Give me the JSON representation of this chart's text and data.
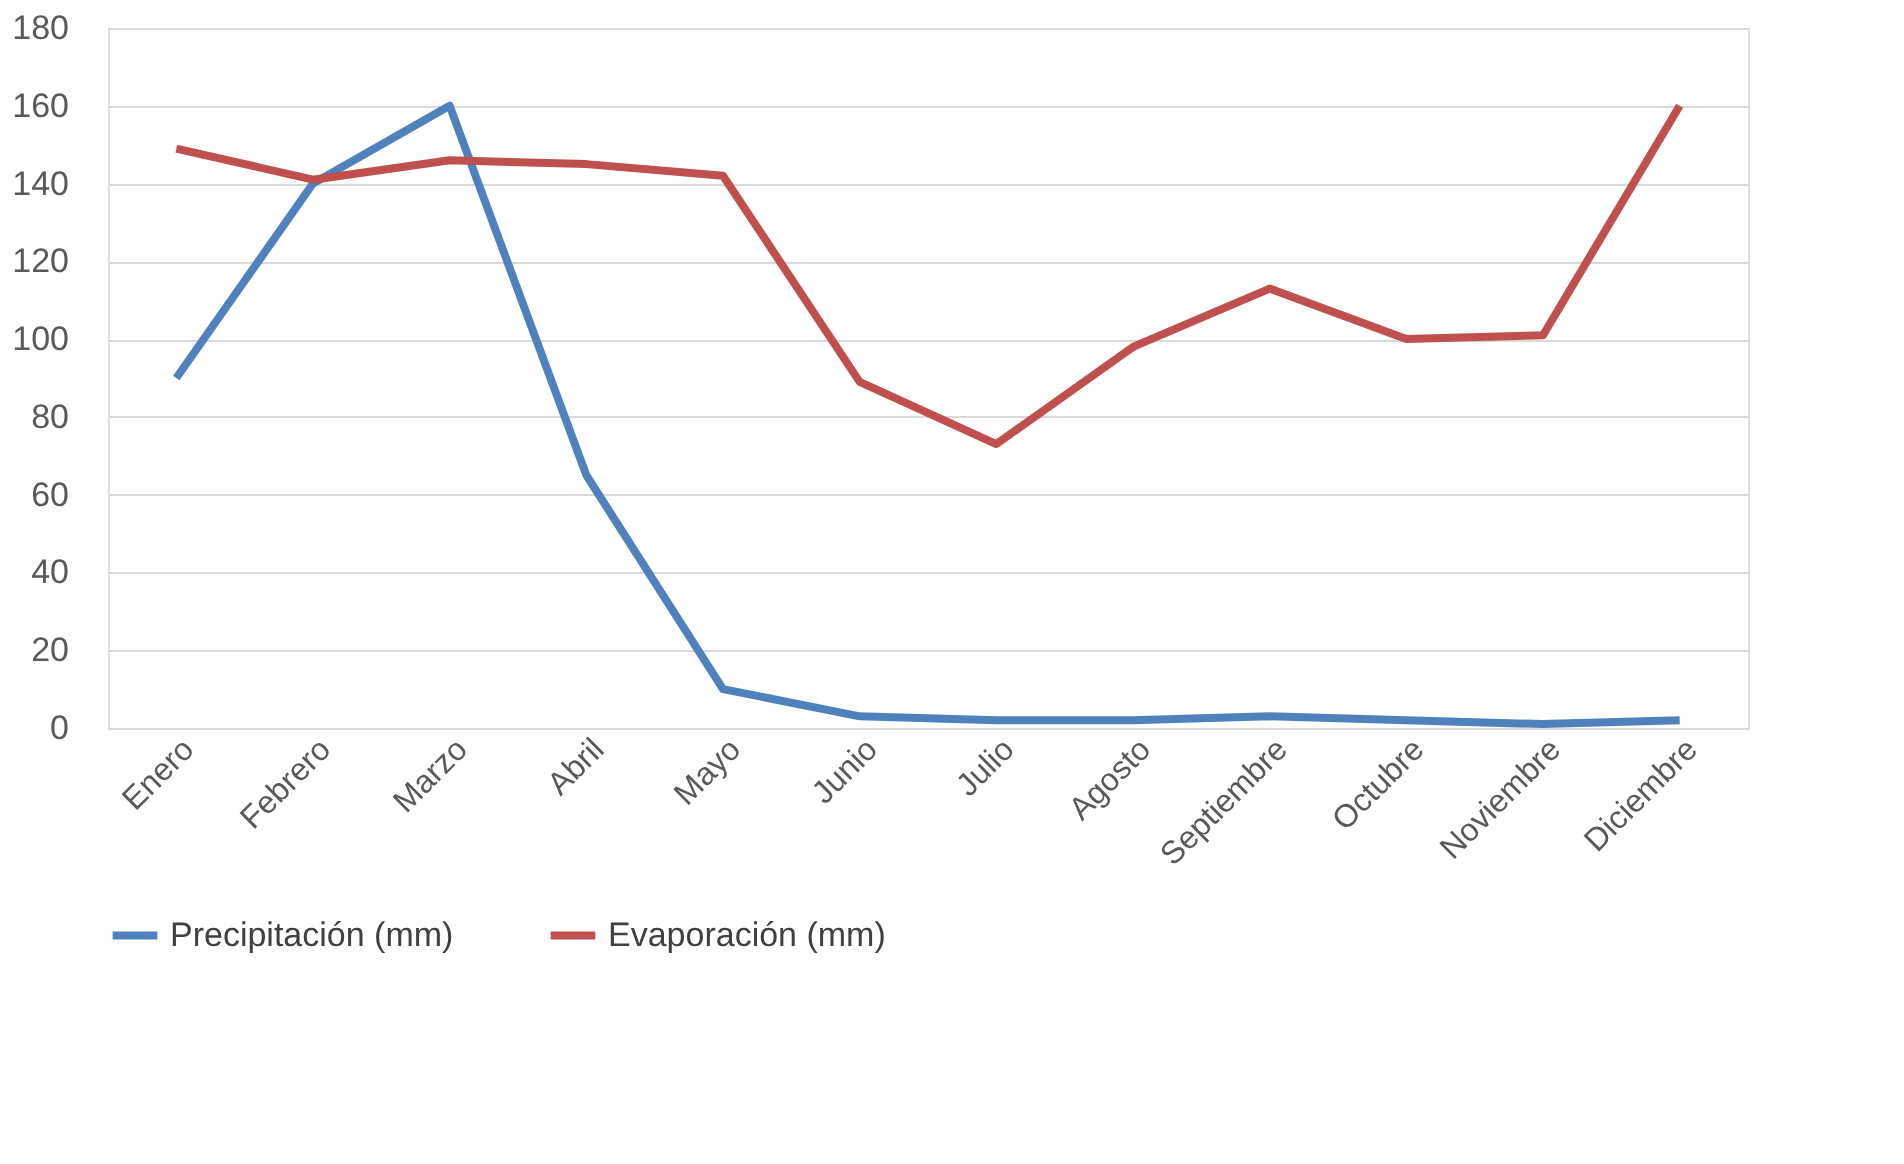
{
  "chart_data": {
    "type": "line",
    "categories": [
      "Enero",
      "Febrero",
      "Marzo",
      "Abril",
      "Mayo",
      "Junio",
      "Julio",
      "Agosto",
      "Septiembre",
      "Octubre",
      "Noviembre",
      "Diciembre"
    ],
    "series": [
      {
        "name": "Precipitación (mm)",
        "color": "#4f81bd",
        "values": [
          90,
          140,
          160,
          65,
          10,
          3,
          2,
          2,
          3,
          2,
          1,
          2
        ]
      },
      {
        "name": "Evaporación (mm)",
        "color": "#c0504d",
        "values": [
          149,
          141,
          146,
          145,
          142,
          89,
          73,
          98,
          113,
          100,
          101,
          160
        ]
      }
    ],
    "ylim": [
      0,
      180
    ],
    "yticks": [
      0,
      20,
      40,
      60,
      80,
      100,
      120,
      140,
      160,
      180
    ],
    "grid": "y",
    "legend": "bottom",
    "marker": "none",
    "line_style": "solid"
  }
}
